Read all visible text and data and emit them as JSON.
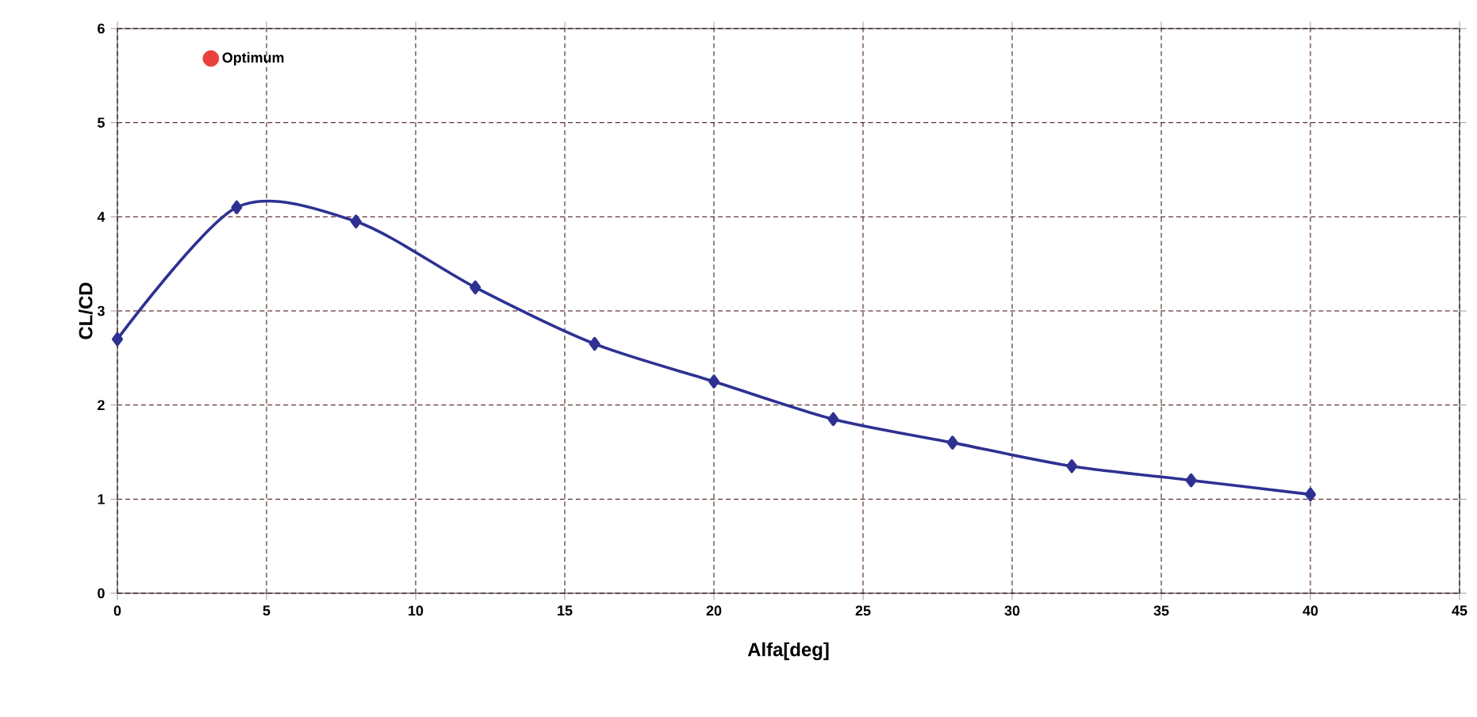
{
  "chart_data": {
    "type": "line",
    "xlabel": "Alfa[deg]",
    "ylabel": "CL/CD",
    "xlim": [
      0,
      45
    ],
    "ylim": [
      0,
      6
    ],
    "xticks": [
      0,
      5,
      10,
      15,
      20,
      25,
      30,
      35,
      40,
      45
    ],
    "yticks": [
      0,
      1,
      2,
      3,
      4,
      5,
      6
    ],
    "grid": true,
    "legend": "top left",
    "marker": "diamond",
    "line_style": "solid",
    "series": [
      {
        "color": "#2e3192",
        "x": [
          0,
          4,
          8,
          12,
          16,
          20,
          24,
          28,
          32,
          36,
          40
        ],
        "values": [
          2.7,
          4.1,
          3.95,
          3.25,
          2.65,
          2.25,
          1.85,
          1.6,
          1.35,
          1.2,
          1.05
        ]
      },
      {
        "type": "scatter",
        "name": "Optimum",
        "color": "#e8413c"
      }
    ]
  }
}
